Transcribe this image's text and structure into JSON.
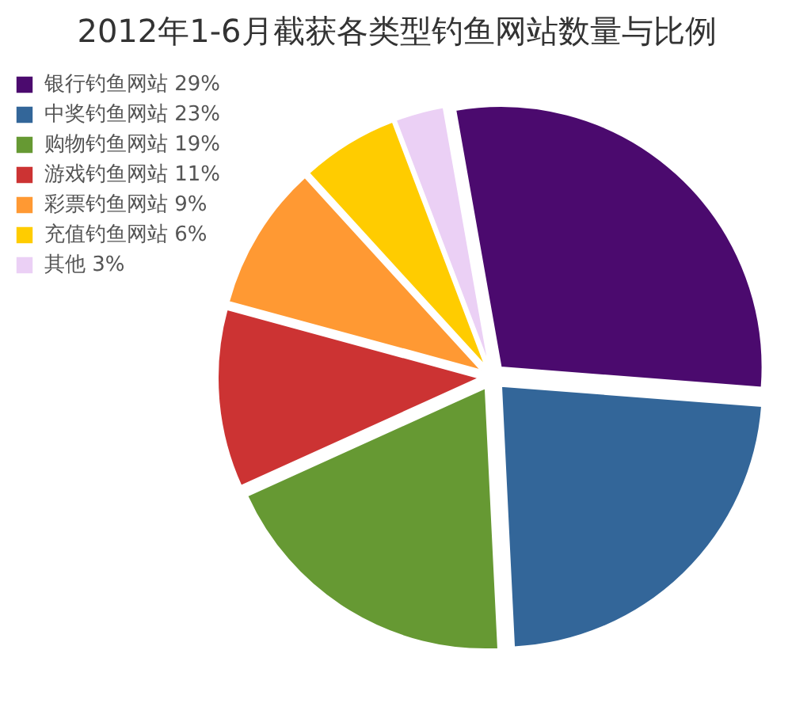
{
  "chart_data": {
    "type": "pie",
    "title": "2012年1-6月截获各类型钓鱼网站数量与比例",
    "categories": [
      "银行钓鱼网站 29%",
      "中奖钓鱼网站 23%",
      "购物钓鱼网站 19%",
      "游戏钓鱼网站 11%",
      "彩票钓鱼网站 9%",
      "充值钓鱼网站 6%",
      "其他 3%"
    ],
    "values": [
      29,
      23,
      19,
      11,
      9,
      6,
      3
    ],
    "colors": [
      "#4b0a6e",
      "#336699",
      "#669933",
      "#cc3333",
      "#ff9933",
      "#ffcc00",
      "#ebd0f5"
    ],
    "legend": "top left"
  }
}
